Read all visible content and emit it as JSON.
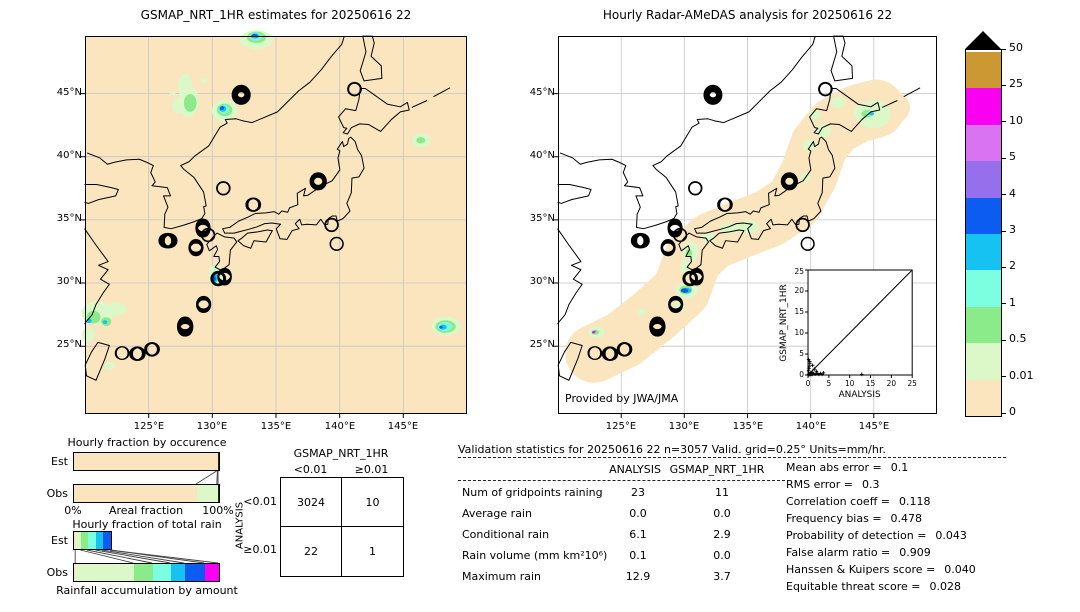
{
  "palette": {
    "peach": "#FAE5BE",
    "palegreen": "#DCF7C8",
    "green": "#8BEB8B",
    "aqua": "#7CFFE1",
    "cyan": "#15C2F2",
    "blue": "#0C5CF2",
    "purple": "#9670EC",
    "orchid": "#D973F2",
    "magenta": "#FA00F2",
    "gold": "#CB9833",
    "overflow": "#000000",
    "grid_gray": "#C4C4C4"
  },
  "chart_data": [
    {
      "type": "map",
      "name": "gsmap_map",
      "title": "GSMAP_NRT_1HR estimates for 20250616 22",
      "lon_ticks": [
        "125°E",
        "130°E",
        "135°E",
        "140°E",
        "145°E"
      ],
      "lat_ticks": [
        "45°N",
        "40°N",
        "35°N",
        "30°N",
        "25°N"
      ],
      "lon_range": [
        120,
        150
      ],
      "lat_range": [
        20,
        49.5
      ]
    },
    {
      "type": "map",
      "name": "radar_map",
      "title": "Hourly Radar-AMeDAS analysis for 20250616 22",
      "credit": "Provided by JWA/JMA",
      "lon_ticks": [
        "125°E",
        "130°E",
        "135°E",
        "140°E",
        "145°E"
      ],
      "lat_ticks": [
        "45°N",
        "40°N",
        "35°N",
        "30°N",
        "25°N"
      ],
      "lon_range": [
        120,
        150
      ],
      "lat_range": [
        20,
        49.5
      ]
    },
    {
      "type": "colorbar",
      "name": "rain_rate_scale",
      "units": "mm/hr",
      "tick_labels": [
        "0",
        "0.01",
        "0.5",
        "1",
        "2",
        "3",
        "4",
        "5",
        "10",
        "25",
        "50"
      ],
      "colors": [
        "#FAE5BE",
        "#DCF7C8",
        "#8BEB8B",
        "#7CFFE1",
        "#15C2F2",
        "#0C5CF2",
        "#9670EC",
        "#D973F2",
        "#FA00F2",
        "#CB9833"
      ],
      "overflow_color": "#000000"
    },
    {
      "type": "bar",
      "name": "hourly_fraction_by_occurrence",
      "title": "Hourly fraction by occurence",
      "xlabel": "Areal fraction",
      "x_min_label": "0%",
      "x_max_label": "100%",
      "rows": [
        {
          "label": "Est",
          "segments": [
            {
              "color": "#FAE5BE",
              "value": 99.0
            },
            {
              "color": "#8BEB8B",
              "value": 0.6
            },
            {
              "color": "#222222",
              "value": 0.4
            }
          ]
        },
        {
          "label": "Obs",
          "segments": [
            {
              "color": "#FAE5BE",
              "value": 84.8
            },
            {
              "color": "#DCF7C8",
              "value": 14.4
            },
            {
              "color": "#222222",
              "value": 0.8
            }
          ]
        }
      ]
    },
    {
      "type": "bar",
      "name": "hourly_fraction_of_total_rain",
      "title": "Hourly fraction of total rain",
      "xlabel": "Rainfall accumulation by amount",
      "rows": [
        {
          "label": "Est",
          "segments": [
            {
              "color": "#FAE5BE",
              "value": 1.5
            },
            {
              "color": "#DCF7C8",
              "value": 3.5
            },
            {
              "color": "#8BEB8B",
              "value": 4.5
            },
            {
              "color": "#7CFFE1",
              "value": 6.0
            },
            {
              "color": "#15C2F2",
              "value": 4.5
            },
            {
              "color": "#0C5CF2",
              "value": 5.5
            }
          ]
        },
        {
          "label": "Obs",
          "segments": [
            {
              "color": "#FAE5BE",
              "value": 1.5
            },
            {
              "color": "#DCF7C8",
              "value": 40.0
            },
            {
              "color": "#8BEB8B",
              "value": 13.0
            },
            {
              "color": "#7CFFE1",
              "value": 12.5
            },
            {
              "color": "#15C2F2",
              "value": 9.5
            },
            {
              "color": "#0C5CF2",
              "value": 14.0
            },
            {
              "color": "#FA00F2",
              "value": 9.5
            }
          ]
        }
      ]
    },
    {
      "type": "table",
      "name": "contingency_table",
      "title": "GSMAP_NRT_1HR",
      "row_axis": "ANALYSIS",
      "col_labels": [
        "<0.01",
        "≥0.01"
      ],
      "row_labels": [
        "<0.01",
        "≥0.01"
      ],
      "values": [
        [
          "3024",
          "10"
        ],
        [
          "22",
          "1"
        ]
      ]
    },
    {
      "type": "scatter",
      "name": "analysis_vs_gsmap_inset",
      "xlabel": "ANALYSIS",
      "ylabel": "GSMAP_NRT_1HR",
      "tick_labels": [
        "0",
        "5",
        "10",
        "15",
        "20",
        "25"
      ],
      "xlim": [
        0,
        25
      ],
      "ylim": [
        0,
        25
      ],
      "diagonal": true,
      "points": [
        [
          0.1,
          0.05
        ],
        [
          0.2,
          0.15
        ],
        [
          0.3,
          0.1
        ],
        [
          0.35,
          0.3
        ],
        [
          0.5,
          0.2
        ],
        [
          0.6,
          0.45
        ],
        [
          0.7,
          0.1
        ],
        [
          0.9,
          0.25
        ],
        [
          1.0,
          0.6
        ],
        [
          1.1,
          0.15
        ],
        [
          1.3,
          0.35
        ],
        [
          1.5,
          1.4
        ],
        [
          1.7,
          0.2
        ],
        [
          2.0,
          0.9
        ],
        [
          2.2,
          0.4
        ],
        [
          2.6,
          0.15
        ],
        [
          3.0,
          0.35
        ],
        [
          3.4,
          0.15
        ],
        [
          3.7,
          0.5
        ],
        [
          0.15,
          1.0
        ],
        [
          0.25,
          1.6
        ],
        [
          0.3,
          2.1
        ],
        [
          0.45,
          2.8
        ],
        [
          0.4,
          3.2
        ],
        [
          0.15,
          3.7
        ],
        [
          1.1,
          2.3
        ],
        [
          12.9,
          0.15
        ]
      ]
    },
    {
      "type": "table",
      "name": "validation_statistics",
      "title": "Validation statistics for 20250616 22  n=3057 Valid. grid=0.25° Units=mm/hr.",
      "col_headers": [
        "ANALYSIS",
        "GSMAP_NRT_1HR"
      ],
      "rows": [
        [
          "Num of gridpoints raining",
          "23",
          "11"
        ],
        [
          "Average rain",
          "0.0",
          "0.0"
        ],
        [
          "Conditional rain",
          "6.1",
          "2.9"
        ],
        [
          "Rain volume (mm km²10⁶)",
          "0.1",
          "0.0"
        ],
        [
          "Maximum rain",
          "12.9",
          "3.7"
        ]
      ]
    },
    {
      "type": "table",
      "name": "skill_scores",
      "rows": [
        [
          "Mean abs error =",
          "0.1"
        ],
        [
          "RMS error =",
          "0.3"
        ],
        [
          "Correlation coeff =",
          "0.118"
        ],
        [
          "Frequency bias =",
          "0.478"
        ],
        [
          "Probability of detection =",
          "0.043"
        ],
        [
          "False alarm ratio =",
          "0.909"
        ],
        [
          "Hanssen & Kuipers score =",
          "0.040"
        ],
        [
          "Equitable threat score =",
          "0.028"
        ]
      ]
    }
  ]
}
